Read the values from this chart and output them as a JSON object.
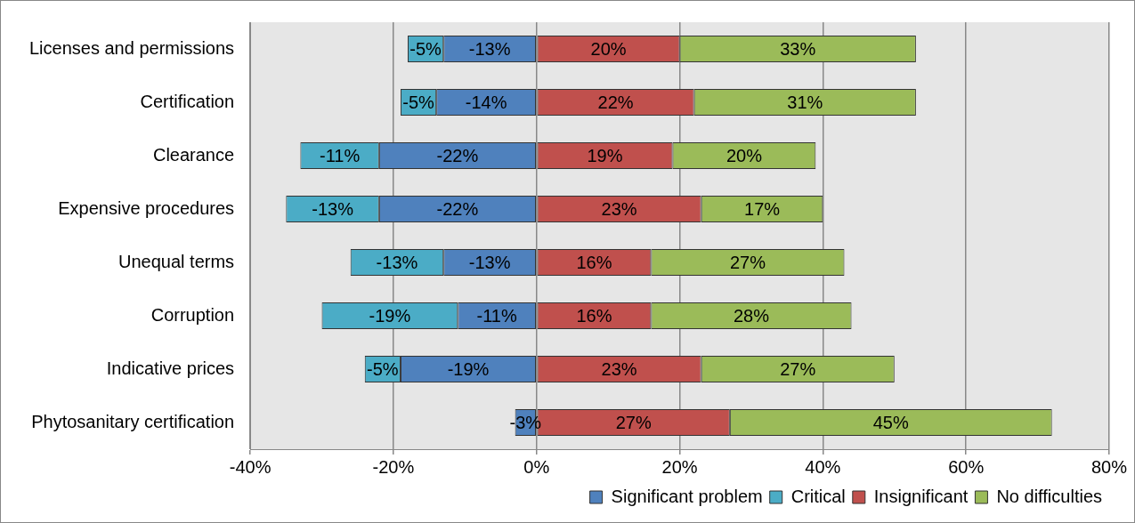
{
  "chart_data": {
    "type": "bar",
    "orientation": "horizontal",
    "stacked": true,
    "categories": [
      "Licenses and permissions",
      "Certification",
      "Clearance",
      "Expensive procedures",
      "Unequal terms",
      "Corruption",
      "Indicative prices",
      "Phytosanitary certification"
    ],
    "series": [
      {
        "name": "Significant problem",
        "color": "#4f81bd",
        "values": [
          -13,
          -14,
          -22,
          -22,
          -13,
          -11,
          -19,
          -3
        ],
        "value_labels": [
          "-13%",
          "-14%",
          "-22%",
          "-22%",
          "-13%",
          "-11%",
          "-19%",
          "-3%"
        ]
      },
      {
        "name": "Critical",
        "color": "#4bacc6",
        "values": [
          -5,
          -5,
          -11,
          -13,
          -13,
          -19,
          -5,
          null
        ],
        "value_labels": [
          "-5%",
          "-5%",
          "-11%",
          "-13%",
          "-13%",
          "-19%",
          "-5%",
          null
        ]
      },
      {
        "name": "Insignificant",
        "color": "#c0504d",
        "values": [
          20,
          22,
          19,
          23,
          16,
          16,
          23,
          27
        ],
        "value_labels": [
          "20%",
          "22%",
          "19%",
          "23%",
          "16%",
          "16%",
          "23%",
          "27%"
        ]
      },
      {
        "name": "No difficulties",
        "color": "#9bbb59",
        "values": [
          33,
          31,
          20,
          17,
          27,
          28,
          27,
          45
        ],
        "value_labels": [
          "33%",
          "31%",
          "20%",
          "17%",
          "27%",
          "28%",
          "27%",
          "45%"
        ]
      }
    ],
    "xlim": [
      -40,
      80
    ],
    "xticks": [
      {
        "value": -40,
        "label": "-40%"
      },
      {
        "value": -20,
        "label": "-20%"
      },
      {
        "value": 0,
        "label": "0%"
      },
      {
        "value": 20,
        "label": "20%"
      },
      {
        "value": 40,
        "label": "40%"
      },
      {
        "value": 60,
        "label": "60%"
      },
      {
        "value": 80,
        "label": "80%"
      }
    ],
    "grid": "x",
    "legend": "bottom"
  }
}
